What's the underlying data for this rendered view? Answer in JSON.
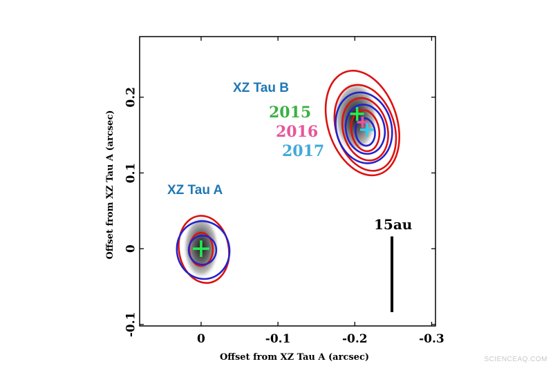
{
  "chart_data": {
    "type": "contour",
    "xlabel": "Offset from XZ Tau A  (arcsec)",
    "ylabel": "Offset from XZ Tau A  (arcsec)",
    "xlim": [
      0.08,
      -0.305
    ],
    "ylim": [
      -0.102,
      0.28
    ],
    "xticks": [
      0,
      -0.1,
      -0.2,
      -0.3
    ],
    "xtick_labels": [
      "0",
      "-0.1",
      "-0.2",
      "-0.3"
    ],
    "yticks": [
      -0.1,
      0,
      0.1,
      0.2
    ],
    "ytick_labels": [
      "-0.1",
      "0",
      "0.1",
      "0.2"
    ],
    "sources": [
      {
        "name": "XZ Tau A",
        "x": 0.0,
        "y": 0.0,
        "label_color": "#1f78b4"
      },
      {
        "name": "XZ Tau B",
        "x": -0.21,
        "y": 0.165,
        "label_color": "#1f78b4"
      }
    ],
    "epochs": [
      {
        "year": "2015",
        "color": "#3cb043",
        "marker_x": -0.203,
        "marker_y": 0.178
      },
      {
        "year": "2016",
        "color": "#e7559a",
        "marker_x": -0.21,
        "marker_y": 0.167
      },
      {
        "year": "2017",
        "color": "#3fa9d9",
        "marker_x": -0.216,
        "marker_y": 0.157
      }
    ],
    "marker_color": "#22ee55",
    "marker_color_2017": "#33ccee",
    "contour_colors": {
      "red": "#dd1111",
      "blue": "#2222cc"
    },
    "scale_bar": {
      "label": "15au",
      "length_arcsec": 0.1
    }
  },
  "watermark": "SCIENCEAQ.COM"
}
